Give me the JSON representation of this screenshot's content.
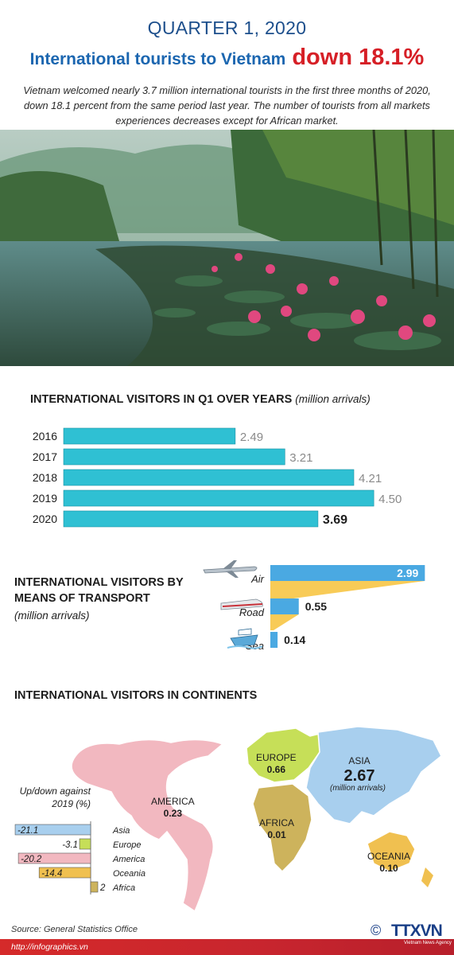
{
  "header": {
    "period": "QUARTER 1, 2020",
    "headline_main": "International tourists to Vietnam",
    "headline_highlight": "down 18.1%",
    "intro": "Vietnam welcomed nearly 3.7 million international tourists in the first three months of 2020, down 18.1 percent from the same period last year.  The number of tourists from all markets experiences decreases except for African market."
  },
  "colors": {
    "bar": "#2fc0d3",
    "bar_highlight": "#2fc0d3",
    "transport_blue": "#4aa9e2",
    "transport_yellow": "#f8cb57",
    "america": "#f2b8c0",
    "europe": "#c6df58",
    "asia": "#a8cfee",
    "africa": "#cdb35c",
    "oceania": "#f0c050"
  },
  "chart_data": [
    {
      "type": "bar",
      "title": "INTERNATIONAL VISITORS IN Q1 OVER YEARS",
      "unit": "(million arrivals)",
      "categories": [
        "2016",
        "2017",
        "2018",
        "2019",
        "2020"
      ],
      "values": [
        2.49,
        3.21,
        4.21,
        4.5,
        3.69
      ],
      "value_labels": [
        "2.49",
        "3.21",
        "4.21",
        "4.50",
        "3.69"
      ],
      "highlight_index": 4
    },
    {
      "type": "bar",
      "title": "INTERNATIONAL VISITORS BY MEANS OF TRANSPORT",
      "unit": "(million arrivals)",
      "categories": [
        "Air",
        "Road",
        "Sea"
      ],
      "values": [
        2.99,
        0.55,
        0.14
      ],
      "value_labels": [
        "2.99",
        "0.55",
        "0.14"
      ],
      "icons": [
        "airplane-icon",
        "train-icon",
        "ship-icon"
      ]
    },
    {
      "type": "bar",
      "title": "Up/down against 2019 (%)",
      "categories": [
        "Asia",
        "Europe",
        "America",
        "Oceania",
        "Africa"
      ],
      "values": [
        -21.1,
        -3.1,
        -20.2,
        -14.4,
        2
      ],
      "value_labels": [
        "-21.1",
        "-3.1",
        "-20.2",
        "-14.4",
        "2"
      ]
    }
  ],
  "continents": {
    "title": "INTERNATIONAL VISITORS IN CONTINENTS",
    "items": [
      {
        "name": "AMERICA",
        "value": "0.23"
      },
      {
        "name": "EUROPE",
        "value": "0.66"
      },
      {
        "name": "ASIA",
        "value": "2.67",
        "note": "(million arrivals)"
      },
      {
        "name": "AFRICA",
        "value": "0.01"
      },
      {
        "name": "OCEANIA",
        "value": "0.10"
      }
    ]
  },
  "footer": {
    "source": "Source: General Statistics Office",
    "url": "http://infographics.vn",
    "logo": "TTXVN",
    "logo_sub": "Vietnam News Agency",
    "copyright": "©"
  }
}
